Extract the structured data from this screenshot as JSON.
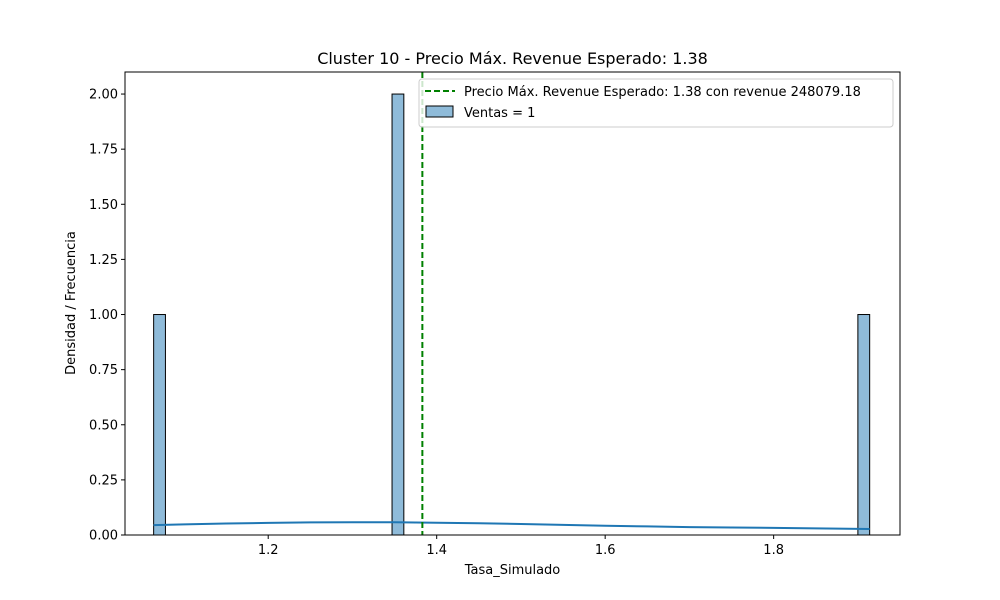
{
  "chart_data": {
    "type": "bar",
    "title": "Cluster 10 - Precio Máx. Revenue Esperado: 1.38",
    "xlabel": "Tasa_Simulado",
    "ylabel": "Densidad / Frecuencia",
    "xlim": [
      1.03,
      1.95
    ],
    "ylim": [
      0,
      2.1
    ],
    "xticks": [
      1.2,
      1.4,
      1.6,
      1.8
    ],
    "xtick_labels": [
      "1.2",
      "1.4",
      "1.6",
      "1.8"
    ],
    "yticks": [
      0,
      0.25,
      0.5,
      0.75,
      1.0,
      1.25,
      1.5,
      1.75,
      2.0
    ],
    "ytick_labels": [
      "0.00",
      "0.25",
      "0.50",
      "0.75",
      "1.00",
      "1.25",
      "1.50",
      "1.75",
      "2.00"
    ],
    "histogram": {
      "name": "Ventas = 1",
      "color": "#1f77b4",
      "bins": [
        {
          "x_start": 1.064,
          "x_end": 1.078,
          "value": 1
        },
        {
          "x_start": 1.347,
          "x_end": 1.361,
          "value": 2
        },
        {
          "x_start": 1.9,
          "x_end": 1.914,
          "value": 1
        }
      ]
    },
    "kde": {
      "color": "#1f77b4",
      "x": [
        1.064,
        1.1,
        1.15,
        1.2,
        1.25,
        1.3,
        1.35,
        1.4,
        1.45,
        1.5,
        1.55,
        1.6,
        1.65,
        1.7,
        1.75,
        1.8,
        1.85,
        1.914
      ],
      "y": [
        0.045,
        0.048,
        0.052,
        0.055,
        0.057,
        0.058,
        0.058,
        0.056,
        0.053,
        0.05,
        0.046,
        0.042,
        0.039,
        0.036,
        0.034,
        0.032,
        0.03,
        0.027
      ]
    },
    "vline": {
      "x": 1.383,
      "color": "#008000",
      "style": "dashed",
      "label": "Precio Máx. Revenue Esperado: 1.38 con revenue 248079.18"
    },
    "legend": {
      "position": "top-right",
      "entries": [
        {
          "label": "Precio Máx. Revenue Esperado: 1.38 con revenue 248079.18",
          "kind": "dashed-line",
          "color": "#008000"
        },
        {
          "label": "Ventas = 1",
          "kind": "patch",
          "color": "#1f77b4"
        }
      ]
    },
    "grid": false
  }
}
